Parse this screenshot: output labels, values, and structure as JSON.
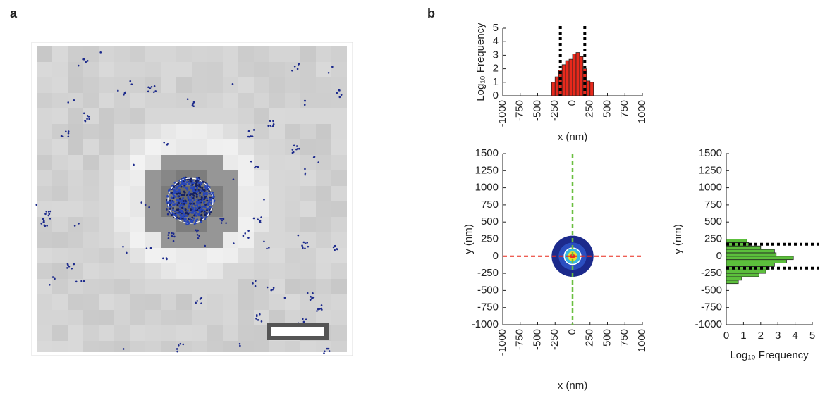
{
  "panel_labels": [
    "a",
    "b"
  ],
  "chart_data": [
    {
      "type": "histogram",
      "color": "#e8291c",
      "xlabel": "x (nm)",
      "ylabel": "Log₁₀ Frequency",
      "xlim": [
        -1000,
        1000
      ],
      "xticks": [
        -1000,
        -750,
        -500,
        -250,
        0,
        250,
        500,
        750,
        1000
      ],
      "ylim": [
        0,
        5
      ],
      "yticks": [
        0,
        1,
        2,
        3,
        4,
        5
      ],
      "bins": [
        -300,
        -250,
        -200,
        -150,
        -100,
        -50,
        0,
        50,
        100,
        150,
        200,
        250,
        300
      ],
      "values": [
        1.0,
        1.4,
        1.9,
        2.3,
        2.6,
        2.7,
        3.1,
        3.2,
        2.9,
        2.0,
        1.1,
        1.0
      ],
      "thresholds": [
        -175,
        175
      ]
    },
    {
      "type": "density",
      "xlabel": "x (nm)",
      "ylabel": "y (nm)",
      "xlim": [
        -1000,
        1000
      ],
      "xticks": [
        -1000,
        -750,
        -500,
        -250,
        0,
        250,
        500,
        750,
        1000
      ],
      "ylim": [
        -1000,
        1500
      ],
      "yticks": [
        -1000,
        -750,
        -500,
        -250,
        0,
        250,
        500,
        750,
        1000,
        1250,
        1500
      ],
      "levels": [
        {
          "radius": 300,
          "color": "#1c2a8c"
        },
        {
          "radius": 200,
          "color": "#2b4fc0"
        },
        {
          "radius": 120,
          "color": "#38b8e0"
        },
        {
          "radius": 70,
          "color": "#e8e030"
        },
        {
          "radius": 35,
          "color": "#e83020"
        }
      ],
      "ring_radius": 120,
      "xline_color": "#6abf40",
      "yline_color": "#e8291c"
    },
    {
      "type": "hbar-histogram",
      "color": "#5cbf3c",
      "xlabel": "Log₁₀ Frequency",
      "ylabel": "y (nm)",
      "xlim": [
        0,
        5
      ],
      "xticks": [
        0,
        1,
        2,
        3,
        4,
        5
      ],
      "ylim": [
        -1000,
        1500
      ],
      "yticks": [
        -1000,
        -750,
        -500,
        -250,
        0,
        250,
        500,
        750,
        1000,
        1250,
        1500
      ],
      "bins": [
        -400,
        -350,
        -300,
        -250,
        -200,
        -150,
        -100,
        -50,
        0,
        50,
        100,
        150,
        200,
        250
      ],
      "values": [
        0.7,
        0.9,
        1.9,
        2.3,
        2.5,
        2.8,
        3.5,
        3.9,
        2.9,
        2.8,
        2.0,
        1.3,
        1.2
      ],
      "thresholds": [
        -175,
        175
      ]
    }
  ]
}
